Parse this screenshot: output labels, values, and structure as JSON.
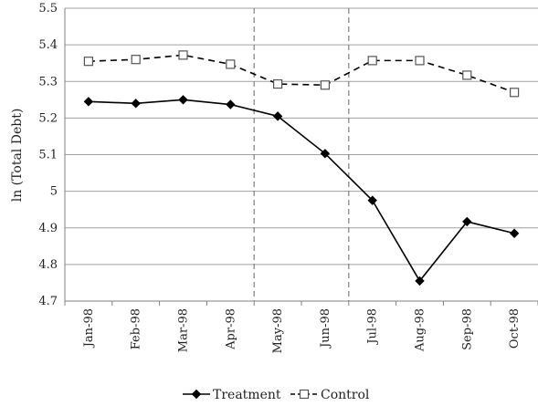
{
  "chart_data": {
    "type": "line",
    "title": "",
    "xlabel": "",
    "ylabel": "ln (Total Debt)",
    "categories": [
      "Jan-98",
      "Feb-98",
      "Mar-98",
      "Apr-98",
      "May-98",
      "Jun-98",
      "Jul-98",
      "Aug-98",
      "Sep-98",
      "Oct-98"
    ],
    "ylim": [
      4.7,
      5.5
    ],
    "yticks": [
      4.7,
      4.8,
      4.9,
      5,
      5.1,
      5.2,
      5.3,
      5.4,
      5.5
    ],
    "ytick_labels": [
      "4.7",
      "4.8",
      "4.9",
      "5",
      "5.1",
      "5.2",
      "5.3",
      "5.4",
      "5.5"
    ],
    "grid": "horizontal",
    "legend_position": "bottom",
    "vertical_reference_lines": [
      {
        "between": [
          "Apr-98",
          "May-98"
        ],
        "style": "dashed"
      },
      {
        "between": [
          "Jun-98",
          "Jul-98"
        ],
        "style": "dashed"
      }
    ],
    "series": [
      {
        "name": "Treatment",
        "marker": "filled-diamond",
        "line_style": "solid",
        "values": [
          5.245,
          5.24,
          5.25,
          5.237,
          5.205,
          5.103,
          4.975,
          4.755,
          4.917,
          4.885
        ]
      },
      {
        "name": "Control",
        "marker": "open-square",
        "line_style": "dashed",
        "values": [
          5.355,
          5.36,
          5.372,
          5.347,
          5.293,
          5.29,
          5.357,
          5.357,
          5.317,
          5.27
        ]
      }
    ],
    "colors": {
      "line": "#000000",
      "gridline": "#a0a0a0",
      "reference_line": "#808080"
    }
  }
}
